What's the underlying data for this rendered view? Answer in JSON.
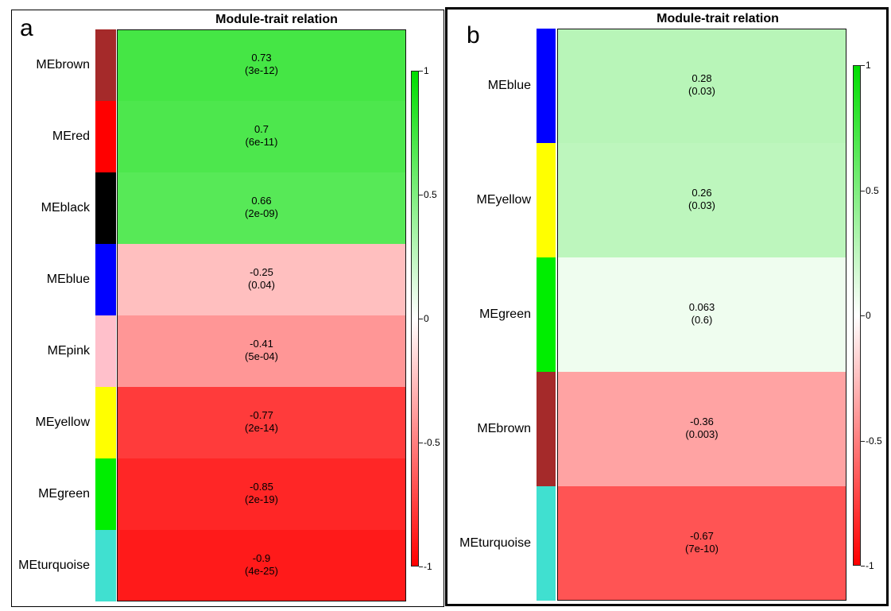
{
  "chart_data": [
    {
      "type": "heatmap",
      "panel_label": "a",
      "title": "Module-trait relation",
      "rows": [
        {
          "module": "MEbrown",
          "color": "#a52a2a",
          "value": 0.73,
          "value_label": "0.73",
          "p_label": "(3e-12)"
        },
        {
          "module": "MEred",
          "color": "#ff0000",
          "value": 0.7,
          "value_label": "0.7",
          "p_label": "(6e-11)"
        },
        {
          "module": "MEblack",
          "color": "#000000",
          "value": 0.66,
          "value_label": "0.66",
          "p_label": "(2e-09)"
        },
        {
          "module": "MEblue",
          "color": "#0000ff",
          "value": -0.25,
          "value_label": "-0.25",
          "p_label": "(0.04)"
        },
        {
          "module": "MEpink",
          "color": "#ffc0cb",
          "value": -0.41,
          "value_label": "-0.41",
          "p_label": "(5e-04)"
        },
        {
          "module": "MEyellow",
          "color": "#ffff00",
          "value": -0.77,
          "value_label": "-0.77",
          "p_label": "(2e-14)"
        },
        {
          "module": "MEgreen",
          "color": "#00ee00",
          "value": -0.85,
          "value_label": "-0.85",
          "p_label": "(2e-19)"
        },
        {
          "module": "MEturquoise",
          "color": "#40e0d0",
          "value": -0.9,
          "value_label": "-0.9",
          "p_label": "(4e-25)"
        }
      ],
      "colorbar": {
        "ticks": [
          "1",
          "0.5",
          "0",
          "-0.5",
          "-1"
        ],
        "range": [
          -1,
          1
        ],
        "high_color": "#00dd00",
        "mid_color": "#ffffff",
        "low_color": "#ff0000"
      }
    },
    {
      "type": "heatmap",
      "panel_label": "b",
      "title": "Module-trait relation",
      "rows": [
        {
          "module": "MEblue",
          "color": "#0000ff",
          "value": 0.28,
          "value_label": "0.28",
          "p_label": "(0.03)"
        },
        {
          "module": "MEyellow",
          "color": "#ffff00",
          "value": 0.26,
          "value_label": "0.26",
          "p_label": "(0.03)"
        },
        {
          "module": "MEgreen",
          "color": "#00ee00",
          "value": 0.063,
          "value_label": "0.063",
          "p_label": "(0.6)"
        },
        {
          "module": "MEbrown",
          "color": "#a52a2a",
          "value": -0.36,
          "value_label": "-0.36",
          "p_label": "(0.003)"
        },
        {
          "module": "MEturquoise",
          "color": "#40e0d0",
          "value": -0.67,
          "value_label": "-0.67",
          "p_label": "(7e-10)"
        }
      ],
      "colorbar": {
        "ticks": [
          "1",
          "0.5",
          "0",
          "-0.5",
          "-1"
        ],
        "range": [
          -1,
          1
        ],
        "high_color": "#00dd00",
        "mid_color": "#ffffff",
        "low_color": "#ff0000"
      }
    }
  ]
}
